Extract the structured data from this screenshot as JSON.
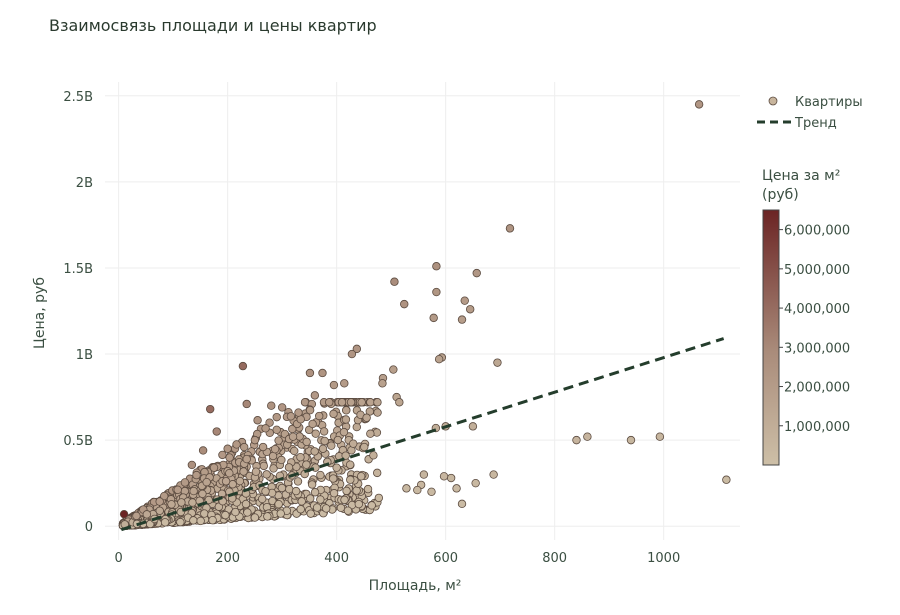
{
  "chart_data": {
    "type": "scatter",
    "title": "Взаимосвязь площади и цены квартир",
    "xlabel": "Площадь, м²",
    "ylabel": "Цена, руб",
    "xlim": [
      -25,
      1140
    ],
    "ylim": [
      -0.08,
      2.58
    ],
    "x_ticks": [
      {
        "value": 0,
        "label": "0"
      },
      {
        "value": 200,
        "label": "200"
      },
      {
        "value": 400,
        "label": "400"
      },
      {
        "value": 600,
        "label": "600"
      },
      {
        "value": 800,
        "label": "800"
      },
      {
        "value": 1000,
        "label": "1000"
      }
    ],
    "y_ticks": [
      {
        "value": 0,
        "label": "0"
      },
      {
        "value": 0.5,
        "label": "0.5B"
      },
      {
        "value": 1,
        "label": "1B"
      },
      {
        "value": 1.5,
        "label": "1.5B"
      },
      {
        "value": 2,
        "label": "2B"
      },
      {
        "value": 2.5,
        "label": "2.5B"
      }
    ],
    "y_unit_note": "y values in billions of rubles",
    "legend": {
      "position": "top-right",
      "entries": [
        {
          "label": "Квартиры",
          "kind": "marker",
          "color": "#c8b59d"
        },
        {
          "label": "Тренд",
          "kind": "dashed-line",
          "color": "#243d2c"
        }
      ]
    },
    "colorbar": {
      "title_line1": "Цена за м²",
      "title_line2": "(руб)",
      "range": [
        0,
        6500000
      ],
      "ticks": [
        {
          "value": 1000000,
          "label": "1,000,000"
        },
        {
          "value": 2000000,
          "label": "2,000,000"
        },
        {
          "value": 3000000,
          "label": "3,000,000"
        },
        {
          "value": 4000000,
          "label": "4,000,000"
        },
        {
          "value": 5000000,
          "label": "5,000,000"
        },
        {
          "value": 6000000,
          "label": "6,000,000"
        }
      ],
      "color_low": "#cdbfa7",
      "color_high": "#6b2424"
    },
    "trend_line": {
      "x": [
        5,
        1110
      ],
      "y": [
        -0.02,
        1.09
      ],
      "color": "#243d2c"
    },
    "series": [
      {
        "name": "Квартиры",
        "points": [
          [
            1065,
            2.45
          ],
          [
            718,
            1.73
          ],
          [
            583,
            1.51
          ],
          [
            657,
            1.47
          ],
          [
            506,
            1.42
          ],
          [
            583,
            1.36
          ],
          [
            524,
            1.29
          ],
          [
            635,
            1.31
          ],
          [
            645,
            1.26
          ],
          [
            578,
            1.21
          ],
          [
            630,
            1.2
          ],
          [
            437,
            1.03
          ],
          [
            428,
            1.0
          ],
          [
            593,
            0.98
          ],
          [
            588,
            0.97
          ],
          [
            695,
            0.95
          ],
          [
            504,
            0.91
          ],
          [
            228,
            0.93
          ],
          [
            374,
            0.89
          ],
          [
            351,
            0.89
          ],
          [
            485,
            0.86
          ],
          [
            414,
            0.83
          ],
          [
            484,
            0.83
          ],
          [
            395,
            0.82
          ],
          [
            360,
            0.76
          ],
          [
            510,
            0.75
          ],
          [
            515,
            0.72
          ],
          [
            840,
            0.5
          ],
          [
            860,
            0.52
          ],
          [
            940,
            0.5
          ],
          [
            993,
            0.52
          ],
          [
            1115,
            0.27
          ],
          [
            650,
            0.58
          ],
          [
            600,
            0.58
          ],
          [
            582,
            0.57
          ],
          [
            688,
            0.3
          ],
          [
            560,
            0.3
          ],
          [
            610,
            0.28
          ],
          [
            655,
            0.25
          ],
          [
            620,
            0.22
          ],
          [
            574,
            0.2
          ],
          [
            597,
            0.29
          ],
          [
            630,
            0.13
          ],
          [
            555,
            0.24
          ],
          [
            548,
            0.21
          ],
          [
            528,
            0.22
          ],
          [
            475,
            0.66
          ],
          [
            455,
            0.63
          ],
          [
            417,
            0.62
          ],
          [
            368,
            0.64
          ],
          [
            330,
            0.66
          ],
          [
            300,
            0.69
          ],
          [
            10,
            0.07
          ],
          [
            168,
            0.68
          ],
          [
            235,
            0.71
          ],
          [
            280,
            0.7
          ],
          [
            180,
            0.55
          ],
          [
            155,
            0.44
          ],
          [
            175,
            0.34
          ],
          [
            200,
            0.45
          ],
          [
            250,
            0.5
          ],
          [
            235,
            0.39
          ],
          [
            265,
            0.46
          ],
          [
            290,
            0.56
          ],
          [
            320,
            0.52
          ],
          [
            345,
            0.49
          ],
          [
            375,
            0.45
          ],
          [
            400,
            0.34
          ],
          [
            425,
            0.27
          ],
          [
            445,
            0.29
          ]
        ]
      }
    ]
  }
}
